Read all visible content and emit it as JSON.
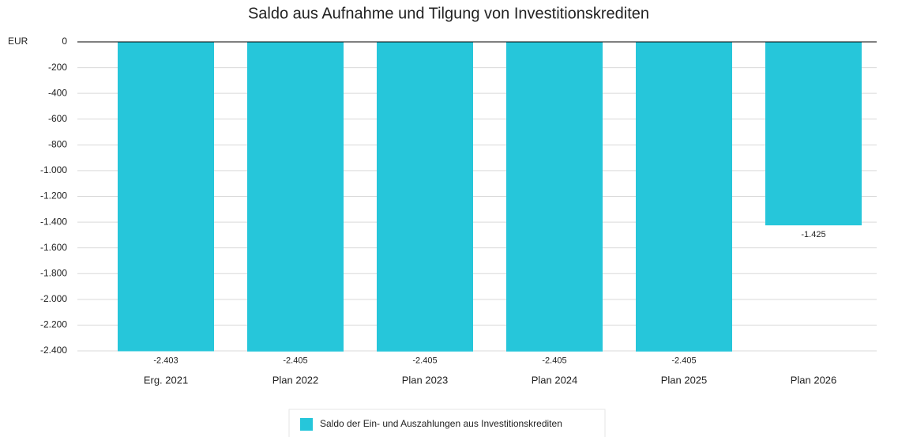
{
  "chart_data": {
    "type": "bar",
    "title": "Saldo aus Aufnahme und Tilgung von Investitionskrediten",
    "y_unit": "EUR",
    "categories": [
      "Erg. 2021",
      "Plan 2022",
      "Plan 2023",
      "Plan 2024",
      "Plan 2025",
      "Plan 2026"
    ],
    "series": [
      {
        "name": "Saldo der Ein- und Auszahlungen aus Investitionskrediten",
        "color": "#26c6da",
        "values": [
          -2403,
          -2405,
          -2405,
          -2405,
          -2405,
          -1425
        ],
        "value_labels": [
          "-2.403",
          "-2.405",
          "-2.405",
          "-2.405",
          "-2.405",
          "-1.425"
        ]
      }
    ],
    "ylim": [
      -2400,
      0
    ],
    "yticks": [
      0,
      -200,
      -400,
      -600,
      -800,
      {
        "value": -1000,
        "label": "-1.000"
      },
      {
        "value": -1200,
        "label": "-1.200"
      },
      {
        "value": -1400,
        "label": "-1.400"
      },
      {
        "value": -1600,
        "label": "-1.600"
      },
      {
        "value": -1800,
        "label": "-1.800"
      },
      {
        "value": -2000,
        "label": "-2.000"
      },
      {
        "value": -2200,
        "label": "-2.200"
      },
      {
        "value": -2400,
        "label": "-2.400"
      }
    ],
    "grid": true,
    "legend": "bottom"
  }
}
